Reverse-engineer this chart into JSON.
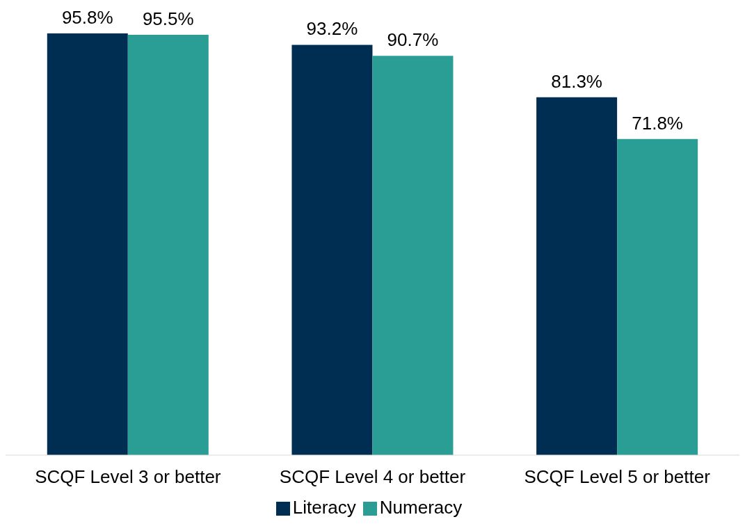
{
  "chart_data": {
    "type": "bar",
    "categories": [
      "SCQF Level 3 or better",
      "SCQF Level 4 or better",
      "SCQF Level 5 or better"
    ],
    "series": [
      {
        "name": "Literacy",
        "color": "#002d52",
        "values": [
          95.8,
          93.2,
          81.3
        ],
        "value_labels": [
          "95.8%",
          "93.2%",
          "81.3%"
        ]
      },
      {
        "name": "Numeracy",
        "color": "#2a9d94",
        "values": [
          95.5,
          90.7,
          71.8
        ],
        "value_labels": [
          "95.5%",
          "90.7%",
          "71.8%"
        ]
      }
    ],
    "legend": "bottom",
    "grid": false
  }
}
